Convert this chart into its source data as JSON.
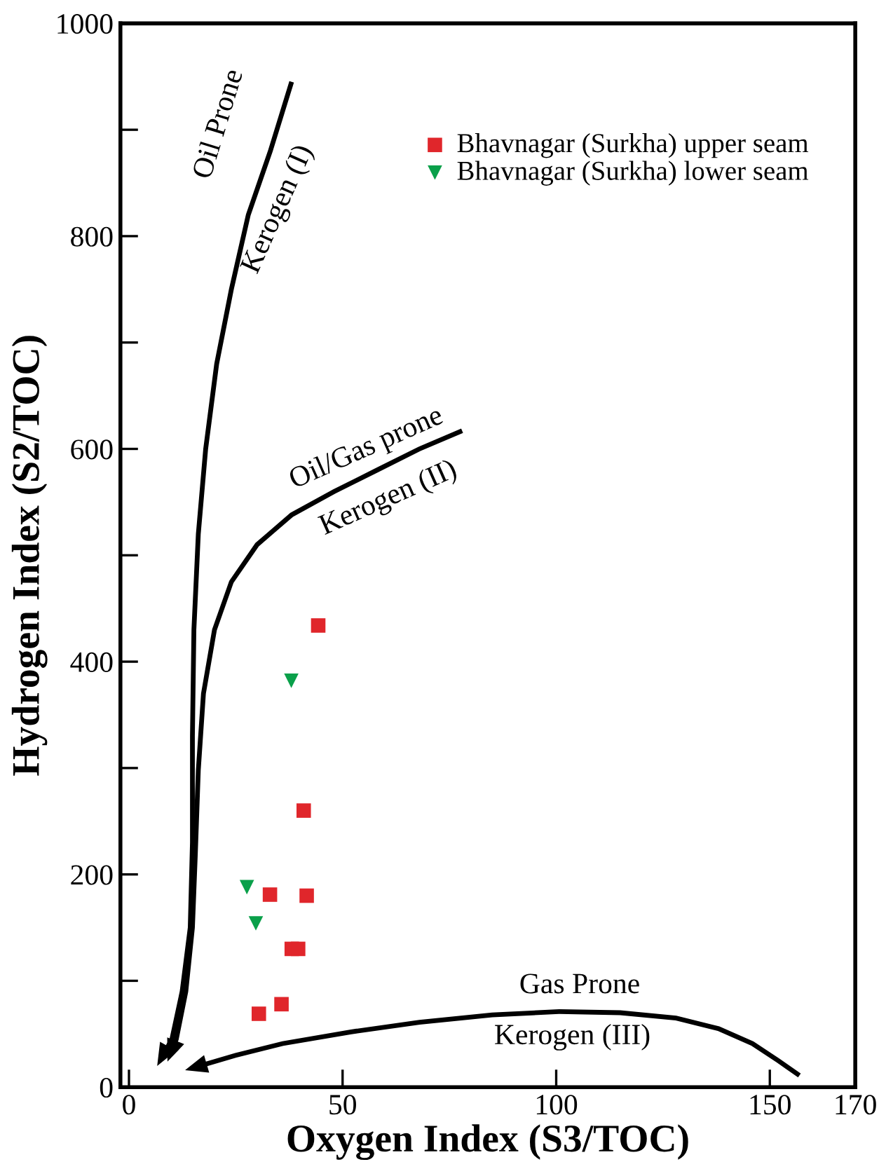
{
  "chart_data": {
    "type": "scatter",
    "xlabel": "Oxygen Index (S3/TOC)",
    "ylabel": "Hydrogen Index (S2/TOC)",
    "xlim": [
      -2,
      170
    ],
    "ylim": [
      0,
      1000
    ],
    "xticks": [
      0,
      50,
      100,
      150,
      170
    ],
    "yticks": [
      0,
      {
        "value": 100,
        "label": null
      },
      200,
      {
        "value": 300,
        "label": null
      },
      400,
      {
        "value": 500,
        "label": null
      },
      600,
      {
        "value": 700,
        "label": null
      },
      800,
      {
        "value": 900,
        "label": null
      },
      1000
    ],
    "grid": false,
    "legend": "top right",
    "series": [
      {
        "name": "Bhavnagar (Surkha) upper seam",
        "color": "#e0262b",
        "marker": "square",
        "x": [
          44.3,
          40.9,
          41.6,
          33.0,
          38.1,
          39.6,
          35.7,
          30.4
        ],
        "values": [
          434,
          260,
          180,
          181,
          130,
          130,
          78,
          69
        ]
      },
      {
        "name": "Bhavnagar (Surkha) lower seam",
        "color": "#0aa04a",
        "marker": "triangle",
        "x": [
          38.0,
          27.6,
          29.7
        ],
        "values": [
          382,
          188,
          154
        ]
      }
    ],
    "annotations": [
      "Oil Prone",
      "Kerogen (I)",
      "Oil/Gas prone",
      "Kerogen (II)",
      "Gas Prone",
      "Kerogen (III)"
    ]
  }
}
